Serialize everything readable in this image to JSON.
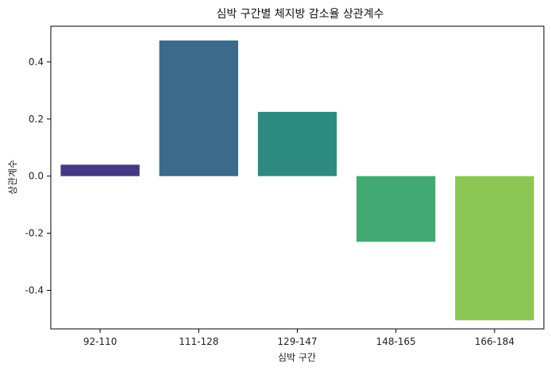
{
  "chart_data": {
    "type": "bar",
    "title": "심박 구간별 체지방 감소율 상관계수",
    "xlabel": "심박 구간",
    "ylabel": "상관계수",
    "categories": [
      "92-110",
      "111-128",
      "129-147",
      "148-165",
      "166-184"
    ],
    "values": [
      0.04,
      0.475,
      0.225,
      -0.23,
      -0.505
    ],
    "colors": [
      "#443983",
      "#3b6a8a",
      "#2d8a80",
      "#43a972",
      "#8cc654"
    ],
    "ylim": [
      -0.535,
      0.525
    ],
    "yticks": [
      -0.4,
      -0.2,
      0.0,
      0.2,
      0.4
    ],
    "ytick_labels": [
      "-0.4",
      "-0.2",
      "0.0",
      "0.2",
      "0.4"
    ],
    "grid": false,
    "legend": "none"
  }
}
